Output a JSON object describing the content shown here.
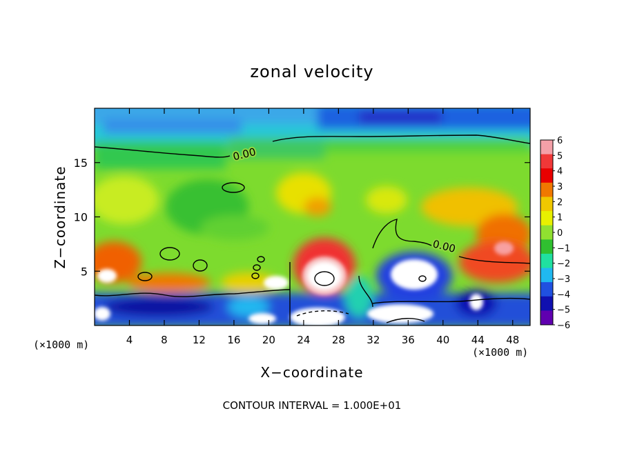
{
  "chart_data": {
    "type": "heatmap",
    "title": "zonal velocity",
    "xlabel": "X−coordinate",
    "ylabel": "Z−coordinate",
    "x_unit_left": "(×1000 m)",
    "x_unit_right": "(×1000 m)",
    "xlim": [
      0,
      50
    ],
    "ylim": [
      0,
      20
    ],
    "x_ticks": [
      "4",
      "8",
      "12",
      "16",
      "20",
      "24",
      "28",
      "32",
      "36",
      "40",
      "44",
      "48"
    ],
    "x_tick_values": [
      4,
      8,
      12,
      16,
      20,
      24,
      28,
      32,
      36,
      40,
      44,
      48
    ],
    "y_ticks": [
      "5",
      "10",
      "15"
    ],
    "y_tick_values": [
      5,
      10,
      15
    ],
    "colorbar": {
      "labels": [
        "6",
        "5",
        "4",
        "3",
        "2",
        "1",
        "0",
        "−1",
        "−2",
        "−3",
        "−4",
        "−5",
        "−6"
      ],
      "values": [
        6,
        5,
        4,
        3,
        2,
        1,
        0,
        -1,
        -2,
        -3,
        -4,
        -5,
        -6
      ],
      "colors": [
        "#f4a0a8",
        "#f03838",
        "#e80000",
        "#f07800",
        "#f0c800",
        "#e8f000",
        "#90e030",
        "#30c030",
        "#20e0a0",
        "#20b8f0",
        "#2050e0",
        "#1010b0",
        "#6000b0"
      ]
    },
    "contour_labels": [
      "0.00",
      "0.00"
    ],
    "footer": "CONTOUR INTERVAL = 1.000E+01"
  }
}
